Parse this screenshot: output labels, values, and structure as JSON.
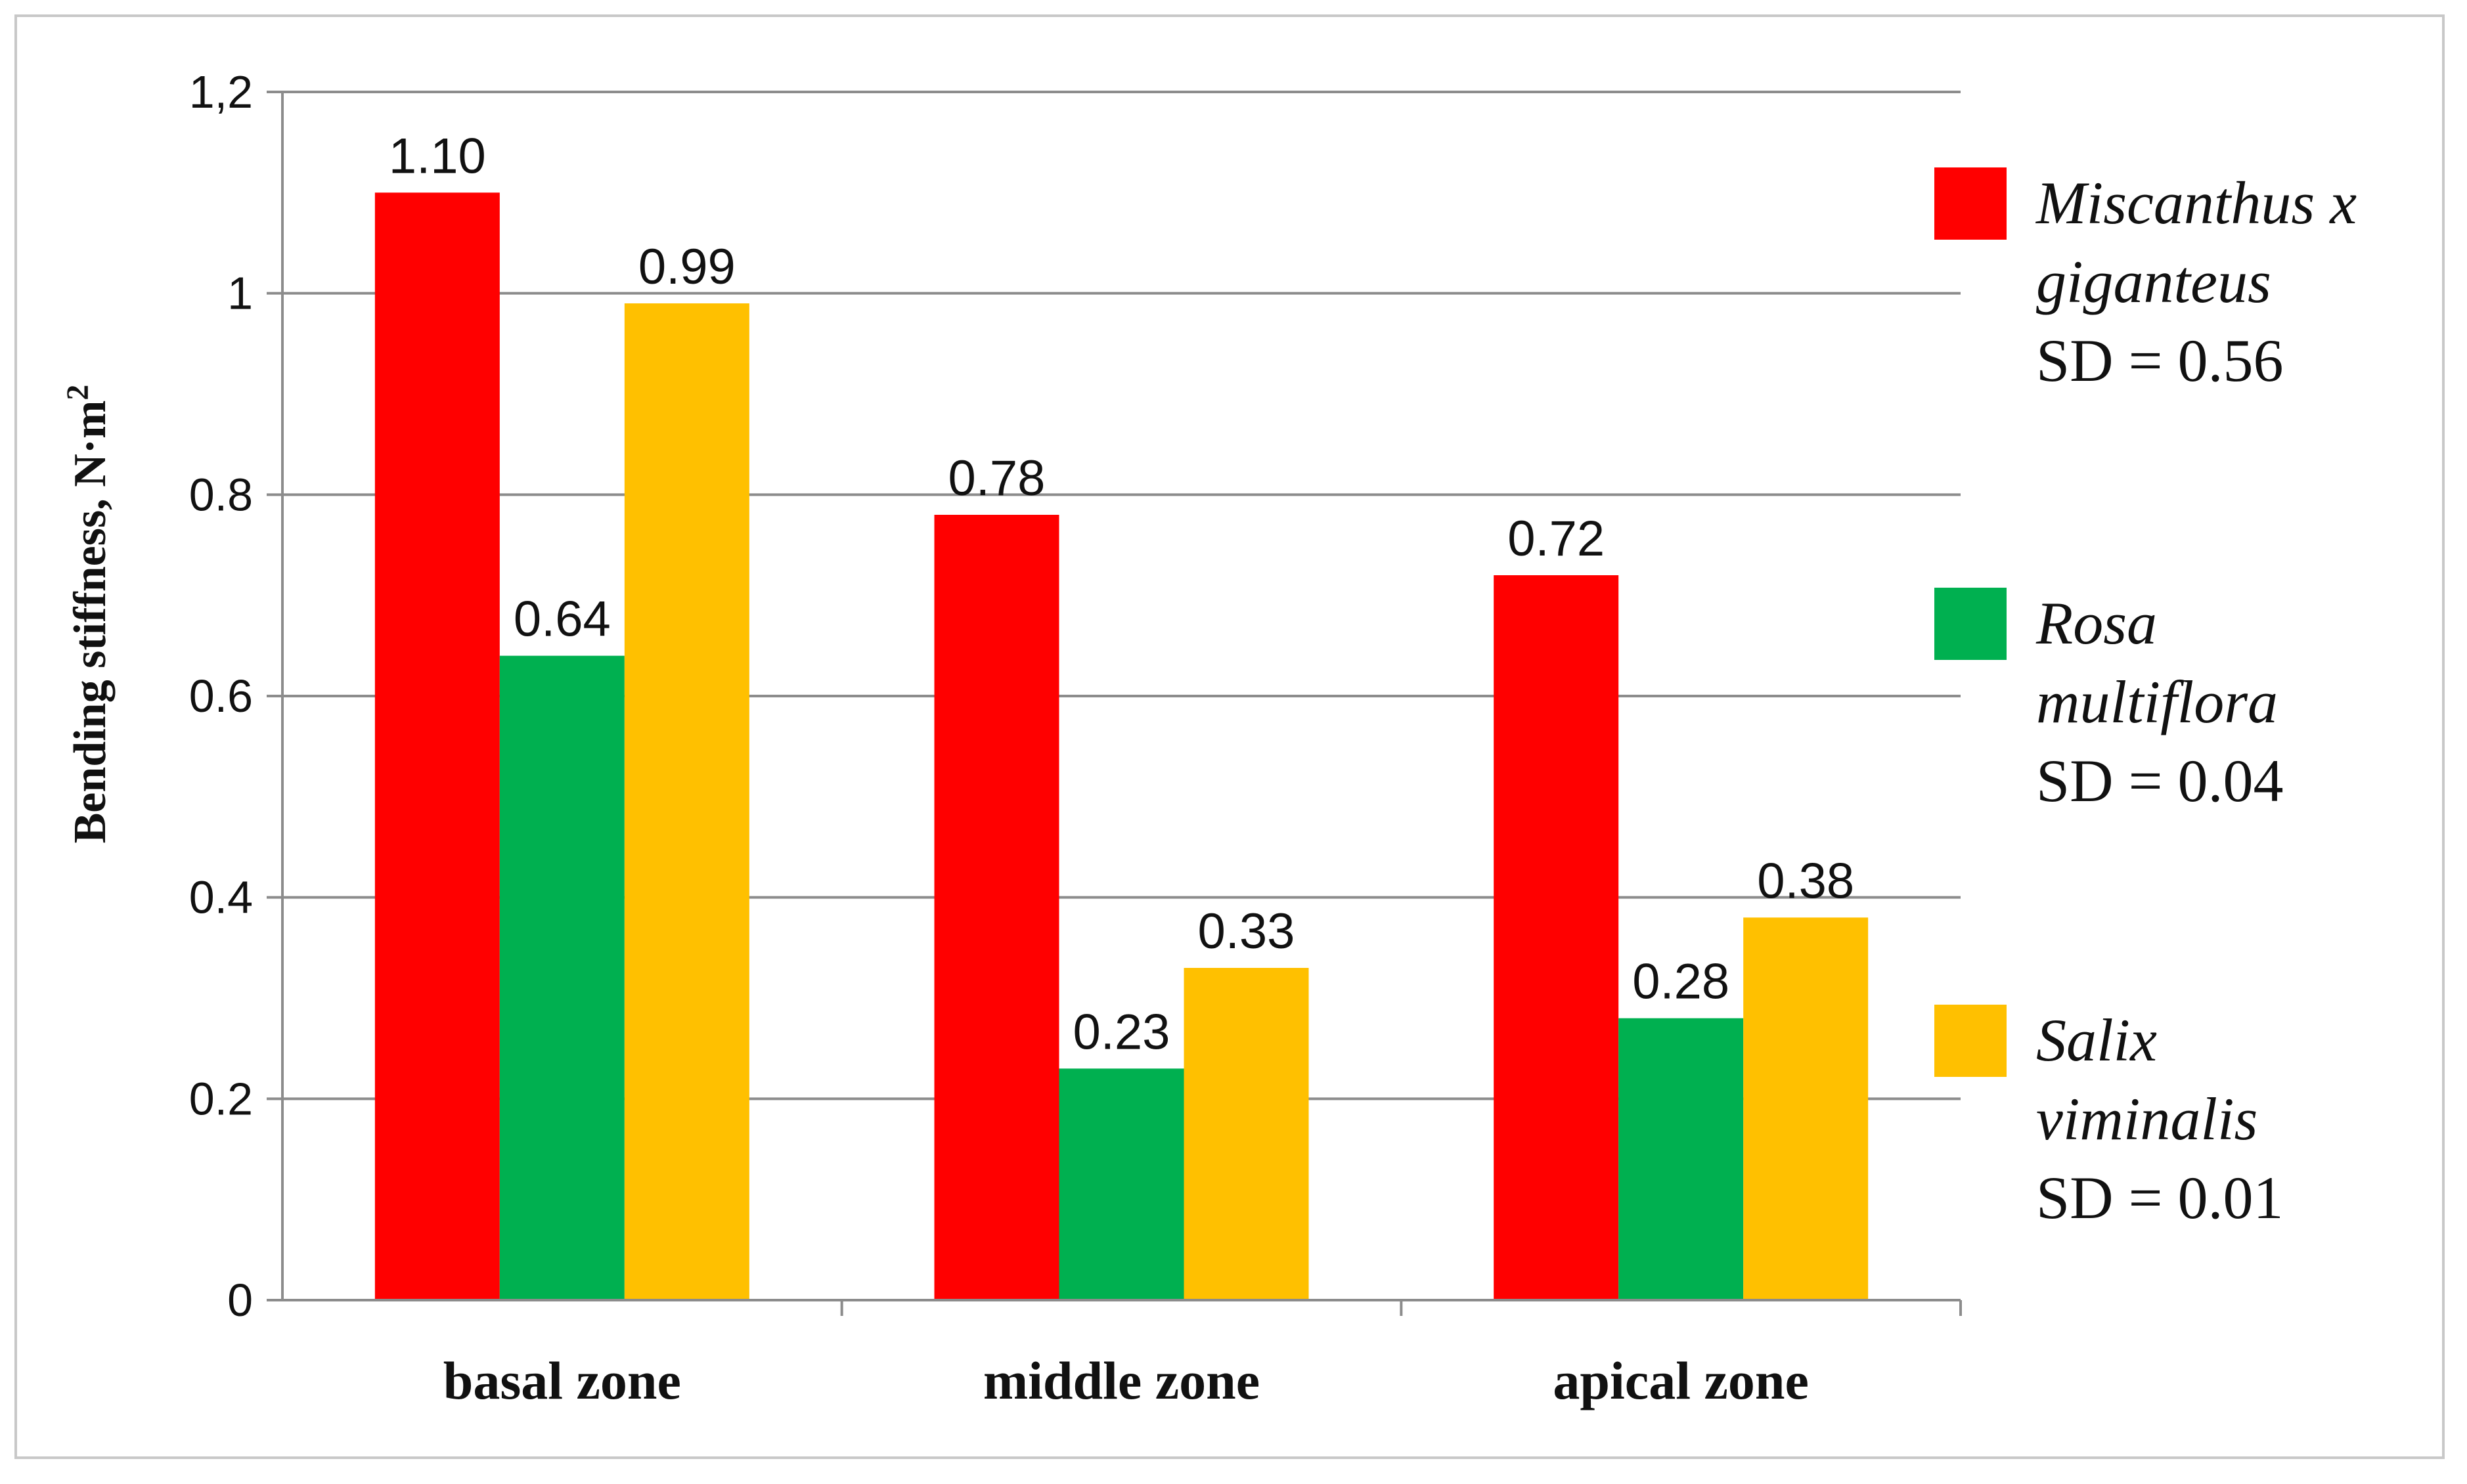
{
  "chart_data": {
    "type": "bar",
    "title": "",
    "xlabel": "",
    "ylabel": "Bending stiffness, N·m",
    "ylabel_superscript": "2",
    "ylim": [
      0,
      1.2
    ],
    "yticks": [
      "0",
      "0.2",
      "0.4",
      "0.6",
      "0.8",
      "1",
      "1,2"
    ],
    "grid": true,
    "legend_position": "right",
    "categories": [
      "basal zone",
      "middle zone",
      "apical zone"
    ],
    "series": [
      {
        "name_lines": [
          "Miscanthus x",
          "giganteus"
        ],
        "sd_label": "SD = 0.56",
        "color": "#ff0000",
        "values": [
          1.1,
          0.78,
          0.72
        ],
        "labels": [
          "1.10",
          "0.78",
          "0.72"
        ]
      },
      {
        "name_lines": [
          "Rosa",
          "multiflora"
        ],
        "sd_label": "SD = 0.04",
        "color": "#00b050",
        "values": [
          0.64,
          0.23,
          0.28
        ],
        "labels": [
          "0.64",
          "0.23",
          "0.28"
        ]
      },
      {
        "name_lines": [
          "Salix",
          "viminalis"
        ],
        "sd_label": "SD = 0.01",
        "color": "#ffc000",
        "values": [
          0.99,
          0.33,
          0.38
        ],
        "labels": [
          "0.99",
          "0.33",
          "0.38"
        ]
      }
    ]
  }
}
